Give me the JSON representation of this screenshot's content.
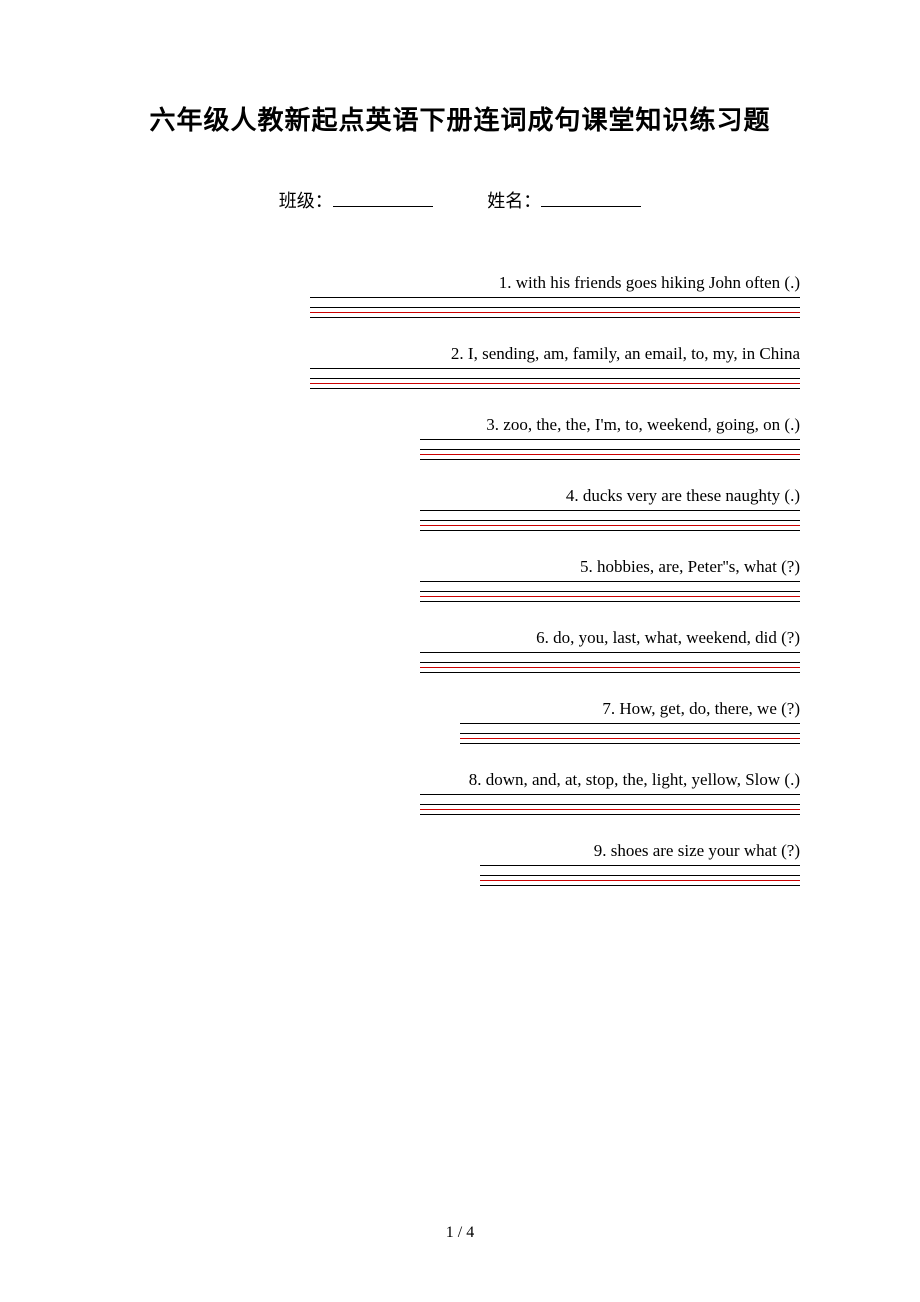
{
  "title": "六年级人教新起点英语下册连词成句课堂知识练习题",
  "info": {
    "class_label": "班级：",
    "name_label": "姓名："
  },
  "questions": [
    {
      "text": "1. with  his  friends  goes  hiking  John  often (.)",
      "line_width": 490
    },
    {
      "text": "2. I, sending, am, family, an email, to, my, in China",
      "line_width": 490
    },
    {
      "text": "3. zoo, the, the, I'm, to, weekend, going, on (.)",
      "line_width": 380
    },
    {
      "text": "4. ducks  very  are  these  naughty (.)",
      "line_width": 380
    },
    {
      "text": "5. hobbies, are, Peter''s, what (?)",
      "line_width": 380
    },
    {
      "text": "6. do, you, last, what, weekend, did (?)",
      "line_width": 380
    },
    {
      "text": "7. How, get, do, there, we (?)",
      "line_width": 340
    },
    {
      "text": "8. down, and, at, stop, the, light, yellow, Slow (.)",
      "line_width": 380
    },
    {
      "text": "9. shoes  are  size  your  what  (?)",
      "line_width": 320
    }
  ],
  "footer": "1 / 4",
  "colors": {
    "text": "#000000",
    "red_line": "#cc0000",
    "background": "#ffffff"
  }
}
